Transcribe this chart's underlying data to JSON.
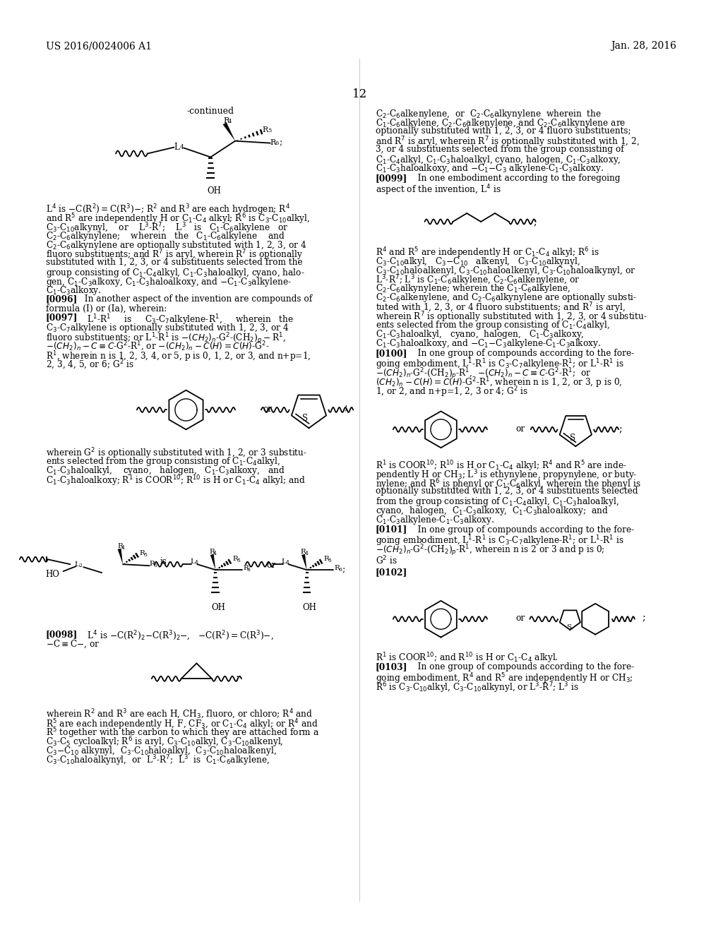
{
  "header_left": "US 2016/0024006 A1",
  "header_right": "Jan. 28, 2016",
  "page_num": "12",
  "bg_color": "#ffffff",
  "text_color": "#000000"
}
